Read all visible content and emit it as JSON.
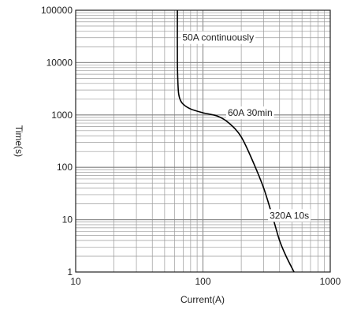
{
  "chart_data": {
    "type": "line",
    "xlabel": "Current(A)",
    "ylabel": "Time(s)",
    "x_scale": "log",
    "y_scale": "log",
    "xlim": [
      10,
      1000
    ],
    "ylim": [
      1,
      100000
    ],
    "grid": true,
    "x_ticks": [
      "10",
      "100",
      "1000"
    ],
    "y_ticks": [
      "1",
      "10",
      "100",
      "1000",
      "10000",
      "100000"
    ],
    "series": [
      {
        "x": [
          63,
          63,
          64,
          66,
          70,
          80,
          100,
          130,
          160,
          200,
          250,
          300,
          350,
          400,
          450,
          520
        ],
        "y": [
          100000,
          10000,
          3000,
          2000,
          1600,
          1300,
          1100,
          950,
          700,
          380,
          120,
          40,
          12,
          4,
          2,
          1
        ]
      }
    ],
    "annotations": [
      {
        "text": "50A continuously",
        "x": 66,
        "y": 30000
      },
      {
        "text": "60A 30min",
        "x": 150,
        "y": 1100
      },
      {
        "text": "320A 10s",
        "x": 320,
        "y": 12
      }
    ],
    "line_color": "#000000",
    "grid_color": "#9a9a9a"
  }
}
